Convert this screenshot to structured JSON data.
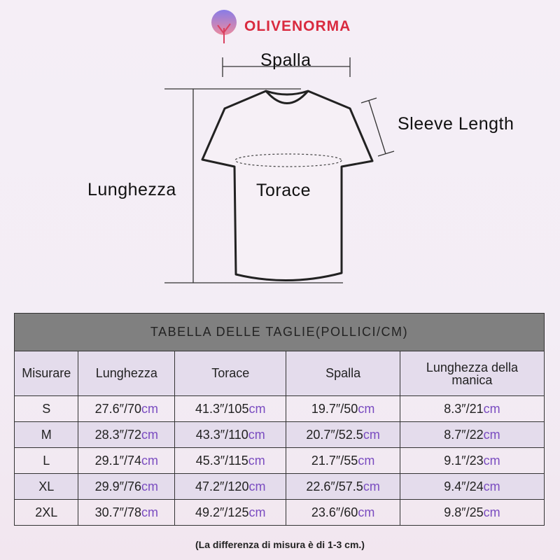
{
  "brand": "OLIVENORMA",
  "diagram": {
    "shoulder": "Spalla",
    "sleeve": "Sleeve Length",
    "length": "Lunghezza",
    "chest": "Torace"
  },
  "table": {
    "title": "TABELLA DELLE TAGLIE(",
    "title_units": "POLLICI/CM",
    "title_end": ")",
    "headers": [
      "Misurare",
      "Lunghezza",
      "Torace",
      "Spalla",
      "Lunghezza della manica"
    ],
    "rows": [
      {
        "size": "S",
        "cells": [
          [
            "27.6″/70",
            "cm"
          ],
          [
            "41.3″/105",
            "cm"
          ],
          [
            "19.7″/50",
            "cm"
          ],
          [
            "8.3″/21",
            "cm"
          ]
        ]
      },
      {
        "size": "M",
        "cells": [
          [
            "28.3″/72",
            "cm"
          ],
          [
            "43.3″/110",
            "cm"
          ],
          [
            "20.7″/52.5",
            "cm"
          ],
          [
            "8.7″/22",
            "cm"
          ]
        ]
      },
      {
        "size": "L",
        "cells": [
          [
            "29.1″/74",
            "cm"
          ],
          [
            "45.3″/115",
            "cm"
          ],
          [
            "21.7″/55",
            "cm"
          ],
          [
            "9.1″/23",
            "cm"
          ]
        ]
      },
      {
        "size": "XL",
        "cells": [
          [
            "29.9″/76",
            "cm"
          ],
          [
            "47.2″/120",
            "cm"
          ],
          [
            "22.6″/57.5",
            "cm"
          ],
          [
            "9.4″/24",
            "cm"
          ]
        ]
      },
      {
        "size": "2XL",
        "cells": [
          [
            "30.7″/78",
            "cm"
          ],
          [
            "49.2″/125",
            "cm"
          ],
          [
            "23.6″/60",
            "cm"
          ],
          [
            "9.8″/25",
            "cm"
          ]
        ]
      }
    ]
  },
  "note": "(La differenza di misura è di 1-3 cm.)",
  "colors": {
    "brand": "#d92a3f",
    "header": "#808080",
    "row_alt": "#e4dcec",
    "unit": "#7a4cc0"
  }
}
